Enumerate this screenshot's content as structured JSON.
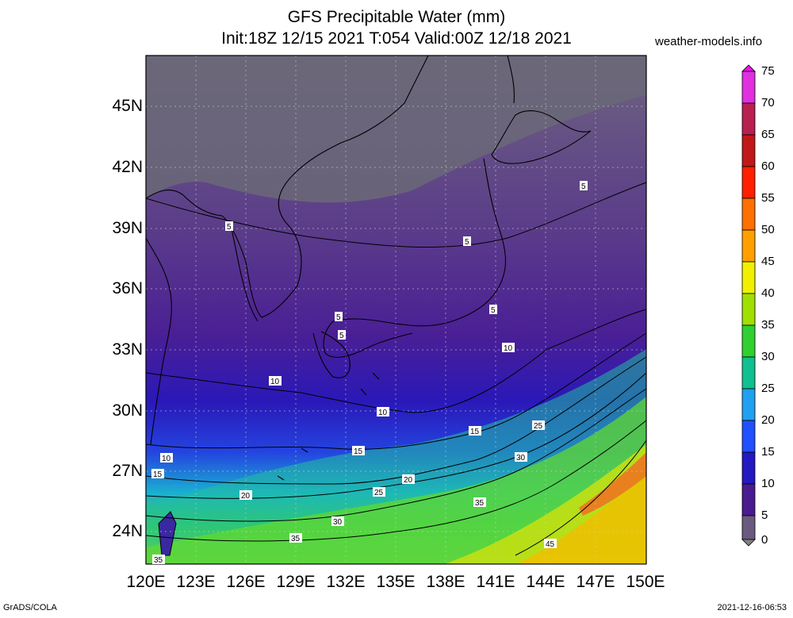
{
  "header": {
    "title": "GFS Precipitable Water (mm)",
    "subtitle": "Init:18Z 12/15 2021 T:054 Valid:00Z 12/18 2021",
    "site": "weather-models.info"
  },
  "footer": {
    "left": "GrADS/COLA",
    "right": "2021-12-16-06:53"
  },
  "map": {
    "lat_ticks": [
      "45N",
      "42N",
      "39N",
      "36N",
      "33N",
      "30N",
      "27N",
      "24N"
    ],
    "lon_ticks": [
      "120E",
      "123E",
      "126E",
      "129E",
      "132E",
      "135E",
      "138E",
      "141E",
      "144E",
      "147E",
      "150E"
    ],
    "contour_labels": [
      "5",
      "5",
      "5",
      "5",
      "5",
      "5",
      "10",
      "10",
      "10",
      "10",
      "15",
      "15",
      "15",
      "20",
      "20",
      "25",
      "25",
      "30",
      "30",
      "35",
      "35",
      "45",
      "35"
    ]
  },
  "colorbar": {
    "labels": [
      "75",
      "70",
      "65",
      "60",
      "55",
      "50",
      "45",
      "40",
      "35",
      "30",
      "25",
      "20",
      "15",
      "10",
      "5",
      "0"
    ],
    "colors": [
      "#ee10ee",
      "#d020c8",
      "#b03020",
      "#e01010",
      "#ff3000",
      "#ff8000",
      "#ffb000",
      "#f0f000",
      "#a0e000",
      "#30d030",
      "#10c080",
      "#20b0f0",
      "#2060ff",
      "#2020e0",
      "#4a1aa0",
      "#5a2a8a",
      "#707070"
    ]
  }
}
